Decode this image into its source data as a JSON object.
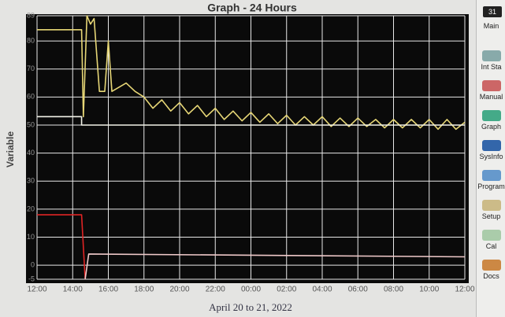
{
  "chart_data": {
    "type": "line",
    "title": "Graph - 24 Hours",
    "x_label": "April 20 to 21, 2022",
    "y_label": "Variable",
    "xlim": [
      0,
      24
    ],
    "ylim": [
      -5,
      89
    ],
    "grid": true,
    "xticks": [
      {
        "value": 0,
        "label": "12:00"
      },
      {
        "value": 2,
        "label": "14:00"
      },
      {
        "value": 4,
        "label": "16:00"
      },
      {
        "value": 6,
        "label": "18:00"
      },
      {
        "value": 8,
        "label": "20:00"
      },
      {
        "value": 10,
        "label": "22:00"
      },
      {
        "value": 12,
        "label": "00:00"
      },
      {
        "value": 14,
        "label": "02:00"
      },
      {
        "value": 16,
        "label": "04:00"
      },
      {
        "value": 18,
        "label": "06:00"
      },
      {
        "value": 20,
        "label": "08:00"
      },
      {
        "value": 22,
        "label": "10:00"
      },
      {
        "value": 24,
        "label": "12:00"
      }
    ],
    "yticks": [
      -5,
      0,
      10,
      20,
      30,
      40,
      50,
      60,
      70,
      80,
      89
    ],
    "series": [
      {
        "color": "#e6d676",
        "x": [
          0,
          2.5,
          2.6,
          2.8,
          3.0,
          3.2,
          3.5,
          3.8,
          4.0,
          4.2,
          5.0,
          5.5,
          6.0,
          6.5,
          7,
          7.5,
          8,
          8.5,
          9,
          9.5,
          10,
          10.5,
          11,
          11.5,
          12,
          12.5,
          13,
          13.5,
          14,
          14.5,
          15,
          15.5,
          16,
          16.5,
          17,
          17.5,
          18,
          18.5,
          19,
          19.5,
          20,
          20.5,
          21,
          21.5,
          22,
          22.5,
          23,
          23.5,
          24
        ],
        "values": [
          84,
          84,
          53,
          89,
          86,
          88,
          62,
          62,
          80,
          62,
          65,
          62,
          60,
          56,
          59,
          55,
          58,
          54,
          57,
          53,
          56,
          52,
          55,
          51.5,
          54.5,
          51,
          54,
          50.5,
          53.5,
          50,
          53,
          50,
          53,
          49.5,
          52.5,
          49.5,
          52.5,
          49.5,
          52,
          49,
          52,
          49,
          52,
          49,
          52,
          48.5,
          52,
          48.5,
          51
        ]
      },
      {
        "color": "#f2f2e8",
        "x": [
          0,
          2.5,
          2.5,
          24
        ],
        "values": [
          53,
          53,
          50,
          50
        ]
      },
      {
        "color": "#e02424",
        "x": [
          0,
          2.5,
          2.7
        ],
        "values": [
          18,
          18,
          -5
        ]
      },
      {
        "color": "#f0caca",
        "x": [
          2.7,
          2.9,
          24
        ],
        "values": [
          -5,
          4,
          3
        ]
      }
    ]
  },
  "sidebar": {
    "badge": "31",
    "items": [
      "Main",
      "Int Sta",
      "Manual",
      "Graph",
      "SysInfo",
      "Program",
      "Setup",
      "Cal",
      "Docs"
    ]
  }
}
